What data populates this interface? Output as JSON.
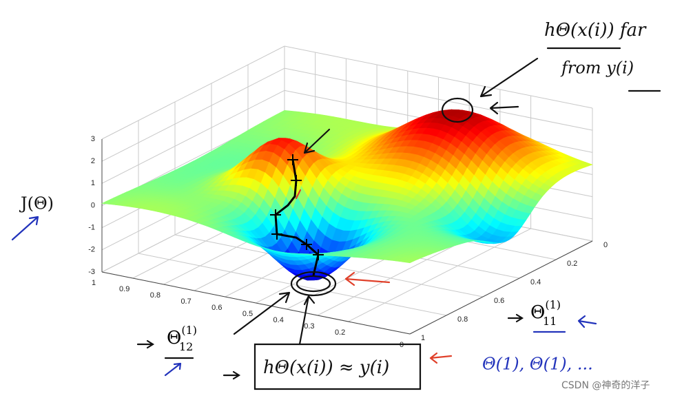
{
  "chart_data": {
    "type": "surface",
    "z_label": "J(Θ)",
    "x_label": {
      "base": "Θ",
      "sup": "(1)",
      "sub": "12"
    },
    "y_label": {
      "base": "Θ",
      "sup": "(1)",
      "sub": "11"
    },
    "xlim": [
      0,
      1
    ],
    "xticks": [
      1,
      0.9,
      0.8,
      0.7,
      0.6,
      0.5,
      0.4,
      0.3,
      0.2,
      0
    ],
    "ylim": [
      0,
      1
    ],
    "yticks": [
      0,
      0.2,
      0.4,
      0.6,
      0.8,
      1
    ],
    "zlim": [
      -3,
      3
    ],
    "zticks": [
      3,
      2,
      1,
      0,
      -1,
      -2,
      -3
    ],
    "colormap": "jet",
    "grid": true
  },
  "annotations": {
    "far_top": "hΘ(x(i)) far",
    "far_bottom": "from y(i)",
    "near": "hΘ(x(i)) ≈ y(i)",
    "examples": "Θ(1), Θ(1), ..."
  },
  "watermark": "CSDN @神奇的洋子"
}
